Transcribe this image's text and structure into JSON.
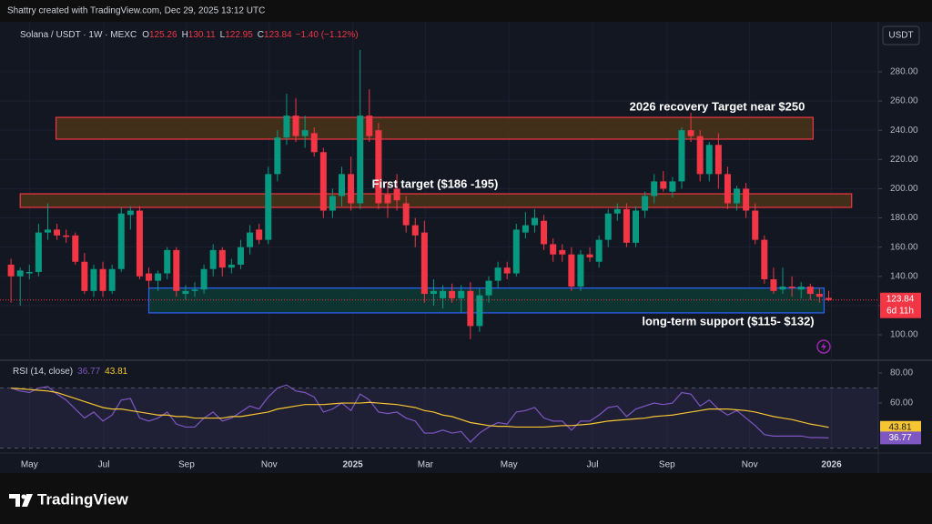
{
  "header": {
    "credit": "Shattry created with TradingView.com, Dec 29, 2025 13:12 UTC",
    "symbol": "Solana / USDT · 1W · MEXC",
    "ohlc_letters": [
      "O",
      "H",
      "L",
      "C"
    ],
    "change": "−1.40 (−1.12%)",
    "currency": "USDT",
    "countdown": "6d 11h",
    "logo": "TradingView"
  },
  "chart_data": [
    {
      "type": "candlestick",
      "up_color": "#089981",
      "down_color": "#f23645",
      "grid": true,
      "xlim": [
        -1.2,
        94.4
      ],
      "xticks": [
        {
          "value": 2,
          "label": "May"
        },
        {
          "value": 10.1,
          "label": "Jul"
        },
        {
          "value": 19.1,
          "label": "Sep"
        },
        {
          "value": 28.1,
          "label": "Nov"
        },
        {
          "value": 37.2,
          "label": "2025"
        },
        {
          "value": 45.1,
          "label": "Mar"
        },
        {
          "value": 54.2,
          "label": "May"
        },
        {
          "value": 63.3,
          "label": "Jul"
        },
        {
          "value": 71.4,
          "label": "Sep"
        },
        {
          "value": 80.4,
          "label": "Nov"
        },
        {
          "value": 89.3,
          "label": "2026"
        }
      ],
      "ylim": [
        83.2,
        314.2
      ],
      "yticks": [
        {
          "value": 100,
          "label": "100.00"
        },
        {
          "value": 120,
          "label": "120.00"
        },
        {
          "value": 140,
          "label": "140.00"
        },
        {
          "value": 160,
          "label": "160.00"
        },
        {
          "value": 180,
          "label": "180.00"
        },
        {
          "value": 200,
          "label": "200.00"
        },
        {
          "value": 220,
          "label": "220.00"
        },
        {
          "value": 240,
          "label": "240.00"
        },
        {
          "value": 260,
          "label": "260.00"
        },
        {
          "value": 280,
          "label": "280.00"
        }
      ],
      "open": [
        148,
        140,
        142,
        143,
        170,
        172,
        168,
        168,
        150,
        130,
        145,
        130,
        145,
        182,
        185,
        142,
        137,
        142,
        158,
        128,
        130,
        131,
        145,
        158,
        146,
        148,
        160,
        172,
        165,
        210,
        235,
        250,
        236,
        238,
        225,
        185,
        195,
        210,
        190,
        250,
        240,
        196,
        200,
        190,
        175,
        170,
        128,
        125,
        130,
        125,
        130,
        106,
        127,
        137,
        146,
        142,
        170,
        175,
        178,
        162,
        158,
        155,
        133,
        155,
        150,
        165,
        183,
        186,
        163,
        185,
        195,
        205,
        198,
        205,
        240,
        236,
        210,
        230,
        210,
        190,
        200,
        185,
        165,
        138,
        131,
        133,
        131,
        133,
        128,
        125.26
      ],
      "high": [
        152,
        146,
        148,
        176,
        190,
        176,
        172,
        170,
        156,
        148,
        150,
        148,
        187,
        188,
        188,
        146,
        144,
        160,
        160,
        134,
        136,
        148,
        162,
        160,
        152,
        165,
        175,
        176,
        215,
        240,
        265,
        262,
        250,
        242,
        228,
        200,
        215,
        222,
        295,
        268,
        245,
        205,
        210,
        195,
        180,
        178,
        138,
        134,
        135,
        134,
        136,
        132,
        140,
        150,
        150,
        176,
        184,
        186,
        182,
        166,
        162,
        160,
        158,
        160,
        168,
        186,
        190,
        190,
        188,
        198,
        210,
        212,
        208,
        242,
        252,
        240,
        232,
        238,
        215,
        202,
        204,
        190,
        168,
        146,
        146,
        140,
        136,
        135,
        132,
        130.11
      ],
      "low": [
        122,
        120,
        138,
        140,
        165,
        165,
        163,
        148,
        128,
        126,
        126,
        128,
        143,
        172,
        138,
        132,
        130,
        138,
        126,
        124,
        126,
        128,
        140,
        140,
        142,
        145,
        155,
        162,
        162,
        205,
        230,
        232,
        228,
        222,
        180,
        180,
        188,
        185,
        186,
        232,
        186,
        180,
        185,
        170,
        160,
        122,
        120,
        118,
        122,
        115,
        97,
        102,
        122,
        132,
        138,
        140,
        166,
        170,
        158,
        150,
        150,
        130,
        130,
        150,
        146,
        160,
        178,
        160,
        160,
        180,
        190,
        198,
        194,
        200,
        232,
        205,
        205,
        200,
        186,
        185,
        180,
        162,
        135,
        128,
        128,
        126,
        125,
        124,
        122,
        122.95
      ],
      "close": [
        140,
        144,
        143,
        170,
        172,
        168,
        167,
        150,
        130,
        145,
        130,
        145,
        183,
        185,
        140,
        137,
        142,
        158,
        130,
        130,
        131,
        145,
        158,
        146,
        148,
        160,
        170,
        165,
        210,
        235,
        250,
        236,
        240,
        225,
        185,
        195,
        210,
        190,
        250,
        236,
        190,
        190,
        192,
        175,
        168,
        128,
        130,
        130,
        125,
        130,
        106,
        127,
        137,
        146,
        142,
        172,
        175,
        180,
        162,
        155,
        155,
        133,
        155,
        153,
        165,
        183,
        186,
        163,
        185,
        195,
        205,
        200,
        205,
        240,
        236,
        210,
        230,
        210,
        190,
        200,
        185,
        165,
        138,
        130,
        133,
        132,
        133,
        128,
        126,
        123.84
      ],
      "zones": [
        {
          "label": "2026 recovery Target near $250",
          "low": 233.9,
          "high": 248.8,
          "start": 4.9,
          "end": 87.3,
          "fill": "#4a3418",
          "stroke": "#f23645"
        },
        {
          "label": "First target ($186 -195)",
          "low": 187.2,
          "high": 196.5,
          "start": 1,
          "end": 91.5,
          "fill": "#4a3418",
          "stroke": "#f23645"
        },
        {
          "label": "long-term support ($115- $132)",
          "low": 115,
          "high": 132,
          "start": 15,
          "end": 88.5,
          "fill": "#0d3a33",
          "stroke": "#2962ff"
        }
      ]
    },
    {
      "type": "line",
      "title": "RSI (14, close)",
      "ylim": [
        27.3,
        87.9
      ],
      "yticks": [
        {
          "value": 60,
          "label": "60.00"
        },
        {
          "value": 80,
          "label": "80.00"
        }
      ],
      "bands": [
        30,
        70
      ],
      "band_color": "#7e57c2",
      "series": [
        {
          "color": "#7e57c2",
          "values": [
            70,
            68,
            67,
            70,
            71,
            66,
            62,
            56,
            50,
            54,
            48,
            52,
            62,
            63,
            50,
            48,
            50,
            54,
            46,
            44,
            44,
            50,
            54,
            48,
            50,
            54,
            58,
            56,
            64,
            70,
            72,
            68,
            67,
            64,
            54,
            56,
            60,
            55,
            66,
            62,
            54,
            53,
            54,
            50,
            48,
            40,
            40,
            42,
            40,
            41,
            34,
            40,
            44,
            47,
            46,
            54,
            55,
            57,
            50,
            48,
            48,
            42,
            48,
            48,
            52,
            57,
            58,
            51,
            56,
            58,
            60,
            59,
            60,
            67,
            66,
            58,
            62,
            56,
            52,
            55,
            50,
            45,
            39,
            38,
            38,
            38,
            38,
            37,
            37,
            36.77
          ]
        },
        {
          "color": "#f7c531",
          "values": [
            70,
            69.5,
            69,
            68.5,
            68,
            67,
            65,
            63,
            61,
            59,
            57,
            56,
            56,
            55,
            54,
            53,
            52,
            52,
            51,
            51,
            50,
            50,
            50,
            50,
            51,
            51,
            52,
            53,
            54,
            56,
            57,
            58,
            59,
            59,
            59,
            59.5,
            60,
            60,
            60,
            60.5,
            60,
            59.5,
            59,
            58,
            57,
            55,
            54,
            52,
            51,
            49,
            47,
            46,
            45,
            44.5,
            44.5,
            44,
            44,
            44,
            44,
            44.5,
            45,
            45,
            45.5,
            46,
            47,
            48,
            48.5,
            49,
            49.5,
            50,
            51,
            51.5,
            52,
            53,
            54,
            55,
            56,
            56,
            56,
            55.5,
            55,
            54,
            52.5,
            51,
            50,
            49,
            47.5,
            46,
            45,
            43.81
          ]
        }
      ]
    }
  ]
}
